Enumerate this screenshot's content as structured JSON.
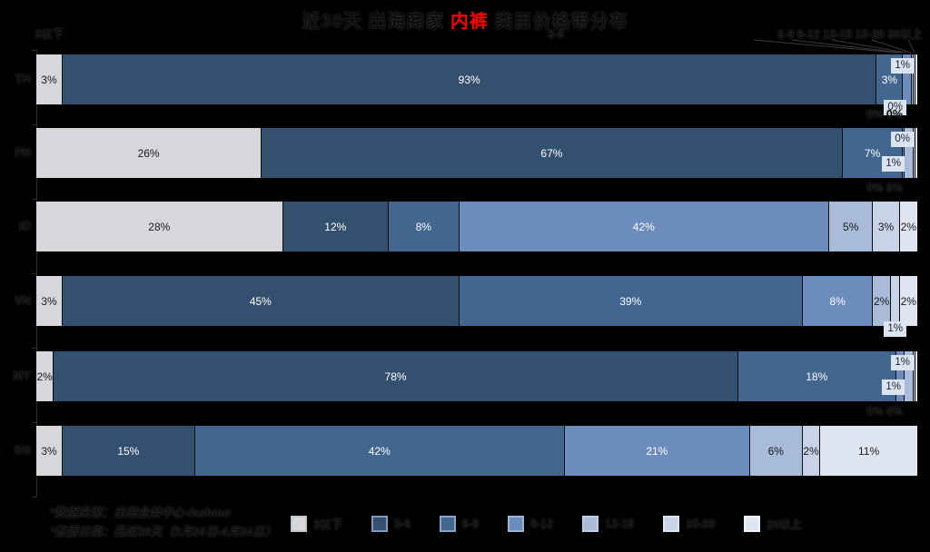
{
  "background": "#000000",
  "chart_data": {
    "type": "bar",
    "orientation": "horizontal-stacked",
    "title": {
      "prefix": "近30天 出海商家 ",
      "highlight": "内裤",
      "suffix": " 类目价格带分布",
      "highlight_color": "#ff0000"
    },
    "unit": "%",
    "xlim": [
      0,
      100
    ],
    "grid": false,
    "legend_position": "bottom",
    "categories": [
      "TH",
      "PH",
      "ID",
      "VN",
      "MY",
      "SG"
    ],
    "series": [
      {
        "name": "3以下",
        "color": "#d5d7da",
        "border": "#c2c6cc",
        "values": [
          3,
          26,
          28,
          3,
          2,
          3
        ]
      },
      {
        "name": "3-6",
        "color": "#33506f",
        "border": "#7e99c5",
        "values": [
          93,
          67,
          12,
          45,
          78,
          15
        ]
      },
      {
        "name": "6-9",
        "color": "#416690",
        "border": "#89a3cb",
        "values": [
          3,
          7,
          8,
          39,
          18,
          42
        ]
      },
      {
        "name": "9-12",
        "color": "#6d8cbe",
        "border": "#9db3d8",
        "values": [
          1,
          0,
          42,
          8,
          1,
          21
        ]
      },
      {
        "name": "12-15",
        "color": "#a8bbd9",
        "border": "#bfcde4",
        "values": [
          0,
          1,
          5,
          2,
          1,
          6
        ]
      },
      {
        "name": "15-20",
        "color": "#c9d3e8",
        "border": "#dde4f1",
        "values": [
          0,
          0,
          3,
          1,
          0,
          2
        ]
      },
      {
        "name": "20以上",
        "color": "#dfe6f1",
        "border": "#edf1f8",
        "values": [
          0,
          0,
          2,
          2,
          0,
          11
        ]
      }
    ],
    "top_annotations": {
      "left": "3以下",
      "mid": "3-6",
      "right": "6-9 9-12 12-15 15-20 20以上"
    },
    "row_annotations": [
      {
        "category": "TH",
        "callouts": [
          {
            "text": "1%",
            "pos": "top"
          },
          {
            "text": "0%",
            "pos": "low"
          }
        ],
        "below": "0% 0%"
      },
      {
        "category": "PH",
        "callouts": [
          {
            "text": "0%",
            "pos": "top"
          },
          {
            "text": "1%",
            "pos": "mid"
          }
        ],
        "below": "0% 0%"
      },
      {
        "category": "ID",
        "callouts": [],
        "below": ""
      },
      {
        "category": "VN",
        "callouts": [
          {
            "text": "1%",
            "pos": "low"
          }
        ],
        "below": ""
      },
      {
        "category": "MY",
        "callouts": [
          {
            "text": "1%",
            "pos": "top"
          },
          {
            "text": "1%",
            "pos": "mid"
          }
        ],
        "below": "0% 0%"
      },
      {
        "category": "SG",
        "callouts": [],
        "below": ""
      }
    ]
  },
  "notes": {
    "line1": "*数据来源：出海业务中心-fashion",
    "line2": "*数据日期：最近30天（3月26日-4月24日）"
  }
}
